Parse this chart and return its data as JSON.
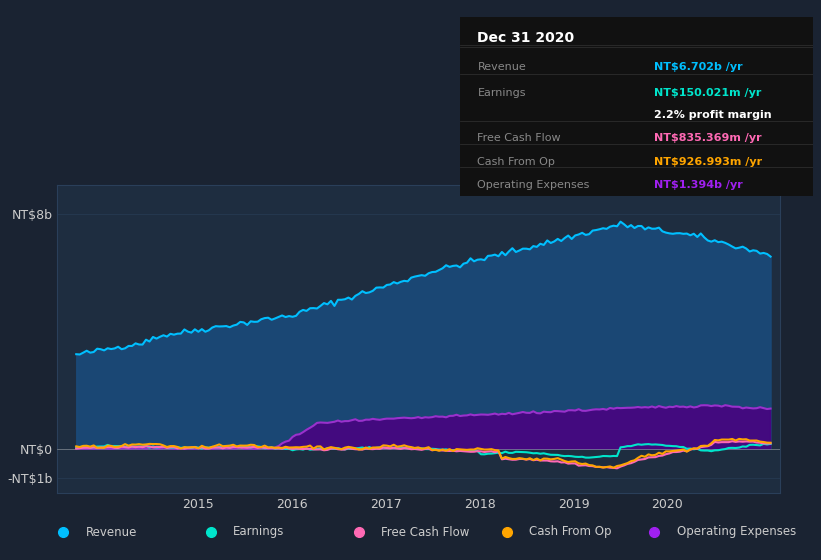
{
  "bg_color": "#1a2332",
  "plot_bg_color": "#1e2d40",
  "title": "Dec 31 2020",
  "table_rows": [
    {
      "label": "Revenue",
      "value": "NT$6.702b /yr",
      "value_color": "#00bfff"
    },
    {
      "label": "Earnings",
      "value": "NT$150.021m /yr",
      "value_color": "#00e5cc"
    },
    {
      "label": "",
      "value": "2.2% profit margin",
      "value_color": "#ffffff"
    },
    {
      "label": "Free Cash Flow",
      "value": "NT$835.369m /yr",
      "value_color": "#ff69b4"
    },
    {
      "label": "Cash From Op",
      "value": "NT$926.993m /yr",
      "value_color": "#ffa500"
    },
    {
      "label": "Operating Expenses",
      "value": "NT$1.394b /yr",
      "value_color": "#a020f0"
    }
  ],
  "yticks": [
    "NT$8b",
    "NT$0",
    "-NT$1b"
  ],
  "ytick_vals": [
    8000000000,
    0,
    -1000000000
  ],
  "ylim": [
    -1500000000,
    9000000000
  ],
  "xlim": [
    2013.5,
    2021.2
  ],
  "xticks": [
    2015,
    2016,
    2017,
    2018,
    2019,
    2020
  ],
  "legend_items": [
    {
      "label": "Revenue",
      "color": "#00bfff"
    },
    {
      "label": "Earnings",
      "color": "#00e5cc"
    },
    {
      "label": "Free Cash Flow",
      "color": "#ff69b4"
    },
    {
      "label": "Cash From Op",
      "color": "#ffa500"
    },
    {
      "label": "Operating Expenses",
      "color": "#a020f0"
    }
  ],
  "revenue_color": "#00bfff",
  "revenue_fill_color": "#1a4a7a",
  "earnings_color": "#00e5cc",
  "fcf_color": "#ff69b4",
  "cashfromop_color": "#ffa500",
  "opex_color": "#9932cc",
  "opex_fill_color": "#4b0082",
  "label_color": "#888888",
  "grid_color": "#2a3f5a",
  "tick_color": "#cccccc",
  "table_bg": "#111111",
  "table_border_color": "#333333"
}
